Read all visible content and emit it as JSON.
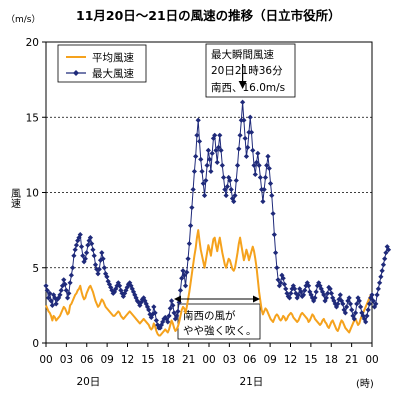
{
  "chart_data": {
    "type": "line",
    "title": "11月20日～21日の風速の推移（日立市役所）",
    "yunit": "（m/s）",
    "ylabel": "風速",
    "xunit": "(時)",
    "ylim": [
      0,
      20
    ],
    "yticks": [
      0,
      5,
      10,
      15,
      20
    ],
    "xticks": [
      "00",
      "03",
      "06",
      "09",
      "12",
      "15",
      "18",
      "21",
      "00",
      "03",
      "06",
      "09",
      "12",
      "15",
      "18",
      "21",
      "00"
    ],
    "day_labels": [
      "20日",
      "21日"
    ],
    "grid": "dashed horizontal at 5, 10, 15",
    "legend_position": "top-left",
    "sample_interval": "10分",
    "series": [
      {
        "name": "平均風速",
        "color": "#F5A21D",
        "values": [
          2.5,
          2.3,
          2.1,
          2.0,
          1.8,
          1.5,
          1.8,
          1.7,
          1.5,
          1.6,
          1.7,
          1.8,
          2.0,
          2.2,
          2.4,
          2.3,
          2.1,
          1.9,
          2.0,
          2.5,
          2.6,
          2.8,
          3.0,
          3.2,
          3.3,
          3.5,
          3.6,
          3.8,
          3.4,
          3.1,
          2.9,
          3.0,
          3.3,
          3.5,
          3.7,
          3.8,
          3.6,
          3.4,
          3.1,
          2.8,
          2.6,
          2.4,
          2.5,
          2.7,
          2.9,
          2.8,
          2.6,
          2.4,
          2.3,
          2.2,
          2.1,
          2.0,
          1.9,
          1.8,
          1.8,
          1.9,
          2.0,
          2.1,
          2.0,
          1.8,
          1.7,
          1.6,
          1.7,
          1.8,
          1.9,
          2.0,
          2.1,
          2.0,
          1.9,
          1.8,
          1.7,
          1.6,
          1.5,
          1.4,
          1.3,
          1.4,
          1.5,
          1.6,
          1.5,
          1.4,
          1.3,
          1.2,
          1.0,
          0.9,
          1.0,
          1.3,
          1.1,
          0.8,
          0.6,
          0.5,
          0.5,
          0.6,
          0.7,
          0.8,
          0.9,
          0.8,
          0.7,
          0.9,
          1.2,
          1.5,
          1.3,
          1.0,
          0.8,
          0.9,
          1.1,
          1.4,
          1.8,
          2.2,
          2.4,
          2.3,
          2.0,
          2.4,
          2.9,
          3.4,
          4.0,
          4.6,
          5.2,
          5.8,
          6.3,
          7.0,
          7.5,
          6.8,
          6.2,
          5.8,
          5.4,
          5.0,
          5.5,
          6.0,
          6.5,
          6.2,
          5.8,
          6.4,
          6.9,
          7.0,
          6.5,
          6.1,
          6.6,
          7.0,
          6.5,
          6.0,
          5.6,
          5.2,
          5.0,
          5.3,
          5.6,
          5.5,
          5.2,
          4.9,
          4.8,
          5.0,
          5.5,
          6.0,
          6.6,
          7.0,
          6.5,
          6.0,
          5.5,
          5.8,
          6.2,
          5.9,
          5.5,
          5.8,
          6.1,
          6.4,
          6.1,
          5.6,
          5.0,
          4.2,
          3.4,
          2.8,
          2.2,
          1.9,
          2.1,
          2.3,
          2.2,
          2.0,
          1.8,
          1.6,
          1.5,
          1.4,
          1.6,
          1.8,
          1.9,
          1.8,
          1.6,
          1.5,
          1.6,
          1.8,
          1.7,
          1.5,
          1.6,
          1.8,
          1.9,
          2.0,
          1.9,
          1.7,
          1.6,
          1.5,
          1.4,
          1.5,
          1.7,
          1.9,
          2.0,
          1.9,
          1.8,
          1.7,
          1.6,
          1.4,
          1.5,
          1.7,
          1.9,
          1.8,
          1.6,
          1.5,
          1.4,
          1.3,
          1.2,
          1.3,
          1.5,
          1.6,
          1.4,
          1.3,
          1.1,
          1.0,
          1.2,
          1.4,
          1.5,
          1.3,
          1.1,
          0.9,
          0.8,
          1.0,
          1.3,
          1.5,
          1.4,
          1.2,
          1.0,
          0.9,
          0.8,
          0.7,
          0.9,
          1.1,
          1.3,
          1.5,
          1.6,
          1.4,
          1.2,
          1.3,
          1.6,
          1.8,
          2.0,
          2.2,
          2.4,
          2.6,
          2.8,
          3.0,
          3.2,
          3.1
        ]
      },
      {
        "name": "最大風速",
        "color": "#1F2A7A",
        "marker": "diamond",
        "values": [
          3.8,
          3.5,
          3.0,
          3.3,
          2.8,
          2.5,
          3.2,
          3.0,
          2.6,
          2.9,
          3.0,
          3.2,
          3.5,
          3.8,
          4.2,
          3.9,
          3.5,
          3.0,
          3.3,
          4.0,
          4.5,
          5.0,
          5.8,
          6.2,
          6.5,
          6.8,
          7.0,
          7.2,
          6.4,
          5.8,
          5.4,
          5.6,
          6.0,
          6.5,
          6.8,
          7.0,
          6.6,
          6.2,
          5.8,
          5.2,
          4.9,
          4.6,
          4.9,
          5.5,
          6.0,
          5.6,
          5.0,
          4.6,
          4.4,
          4.1,
          3.9,
          3.7,
          3.5,
          3.3,
          3.4,
          3.6,
          3.8,
          4.0,
          3.8,
          3.5,
          3.3,
          3.1,
          3.3,
          3.5,
          3.7,
          3.9,
          4.0,
          3.8,
          3.6,
          3.4,
          3.2,
          3.0,
          2.8,
          2.7,
          2.5,
          2.7,
          2.9,
          3.0,
          2.8,
          2.6,
          2.4,
          2.2,
          1.9,
          1.7,
          1.9,
          2.4,
          2.0,
          1.5,
          1.2,
          1.0,
          1.0,
          1.2,
          1.4,
          1.6,
          1.7,
          1.6,
          1.4,
          1.8,
          2.3,
          2.8,
          2.5,
          2.0,
          1.6,
          1.8,
          2.1,
          2.7,
          3.5,
          4.3,
          4.8,
          4.5,
          3.8,
          4.7,
          5.6,
          6.6,
          7.8,
          9.0,
          10.2,
          11.4,
          12.4,
          13.8,
          14.8,
          13.4,
          12.2,
          11.4,
          10.6,
          9.8,
          10.8,
          11.8,
          12.8,
          12.2,
          11.4,
          12.6,
          13.6,
          13.8,
          12.8,
          12.0,
          13.0,
          13.8,
          12.8,
          11.8,
          11.0,
          10.2,
          9.8,
          10.4,
          11.0,
          10.8,
          10.2,
          9.6,
          9.4,
          9.8,
          10.8,
          11.8,
          12.9,
          13.8,
          14.8,
          16.0,
          14.8,
          13.6,
          12.4,
          13.0,
          14.0,
          15.0,
          14.0,
          12.8,
          11.8,
          11.2,
          12.0,
          12.6,
          11.8,
          11.0,
          10.2,
          9.4,
          10.2,
          11.0,
          11.8,
          12.4,
          11.6,
          10.6,
          9.8,
          8.6,
          7.2,
          6.0,
          5.0,
          4.2,
          3.8,
          4.0,
          4.5,
          4.3,
          3.9,
          3.6,
          3.3,
          3.1,
          3.0,
          3.3,
          3.6,
          3.8,
          3.6,
          3.3,
          3.0,
          3.2,
          3.6,
          3.4,
          3.1,
          3.2,
          3.5,
          3.8,
          4.0,
          3.8,
          3.4,
          3.2,
          3.0,
          2.8,
          3.0,
          3.4,
          3.8,
          4.0,
          3.8,
          3.6,
          3.4,
          3.2,
          2.8,
          3.0,
          3.3,
          3.7,
          3.6,
          3.3,
          3.0,
          2.8,
          2.6,
          2.4,
          2.6,
          2.9,
          3.2,
          2.8,
          2.6,
          2.2,
          2.0,
          2.4,
          2.8,
          3.0,
          2.6,
          2.2,
          1.8,
          1.6,
          2.0,
          2.6,
          3.0,
          2.8,
          2.4,
          2.0,
          1.8,
          1.6,
          1.4,
          1.8,
          2.2,
          2.6,
          3.0,
          3.2,
          2.8,
          2.4,
          2.6,
          3.2,
          3.6,
          4.0,
          4.4,
          4.8,
          5.2,
          5.6,
          6.0,
          6.4,
          6.2
        ]
      }
    ],
    "annotations": {
      "peak_lines": [
        "最大瞬間風速",
        "20日21時36分",
        "南西、16.0m/s"
      ],
      "wind_lines": [
        "南西の風が",
        "やや強く吹く。"
      ]
    }
  }
}
